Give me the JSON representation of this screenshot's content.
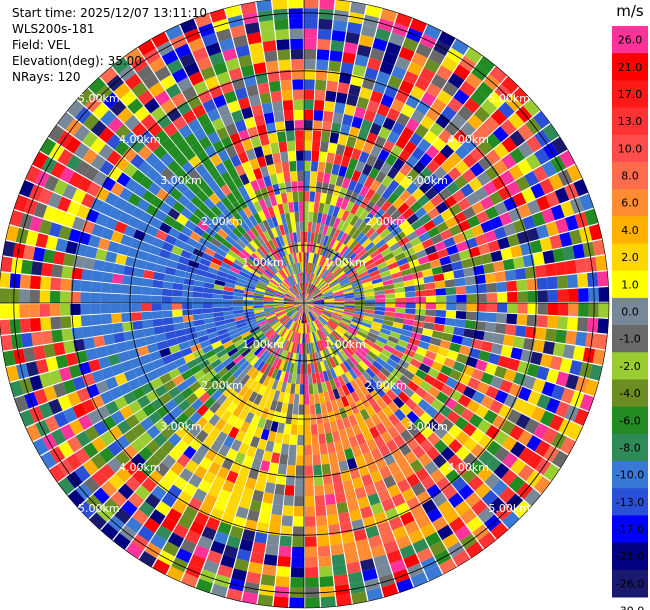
{
  "header": {
    "start_time": "Start time: 2025/12/07 13:11:10",
    "instrument": "WLS200s-181",
    "field": "Field: VEL",
    "elevation": "Elevation(deg): 35.00",
    "nrays": "NRays: 120"
  },
  "chart_data": {
    "type": "heatmap",
    "projection": "polar (PPI)",
    "field": "VEL",
    "nrays": 120,
    "elevation_deg": 35.0,
    "range_rings_km": [
      "1.00km",
      "2.00km",
      "3.00km",
      "4.00km",
      "5.00km"
    ],
    "max_range_km": 5.0,
    "colorbar": {
      "unit": "m/s",
      "ticks": [
        "26.0",
        "21.0",
        "17.0",
        "13.0",
        "10.0",
        "8.0",
        "6.0",
        "4.0",
        "2.0",
        "1.0",
        "0.0",
        "-1.0",
        "-2.0",
        "-4.0",
        "-6.0",
        "-8.0",
        "-10.0",
        "-13.0",
        "-17.0",
        "-21.0",
        "-26.0",
        "-30.0"
      ],
      "colors": [
        "#ff3399",
        "#ff0000",
        "#ff1a1a",
        "#ff3333",
        "#ff4d4d",
        "#ff6b4d",
        "#ff8c33",
        "#ffb000",
        "#ffd700",
        "#ffff00",
        "#778899",
        "#696969",
        "#9acd32",
        "#6b8e23",
        "#228b22",
        "#2e8b57",
        "#3a78d6",
        "#2b50d8",
        "#0000ff",
        "#000080",
        "#191970"
      ]
    },
    "wind_pattern": {
      "coherent_sectors": [
        {
          "azimuth_deg_from": 200,
          "azimuth_deg_to": 300,
          "velocity_ms": -11
        },
        {
          "azimuth_deg_from": 225,
          "azimuth_deg_to": 260,
          "velocity_ms": -4
        },
        {
          "azimuth_deg_from": 140,
          "azimuth_deg_to": 215,
          "velocity_ms": 6
        }
      ],
      "outer_noise": true
    }
  }
}
